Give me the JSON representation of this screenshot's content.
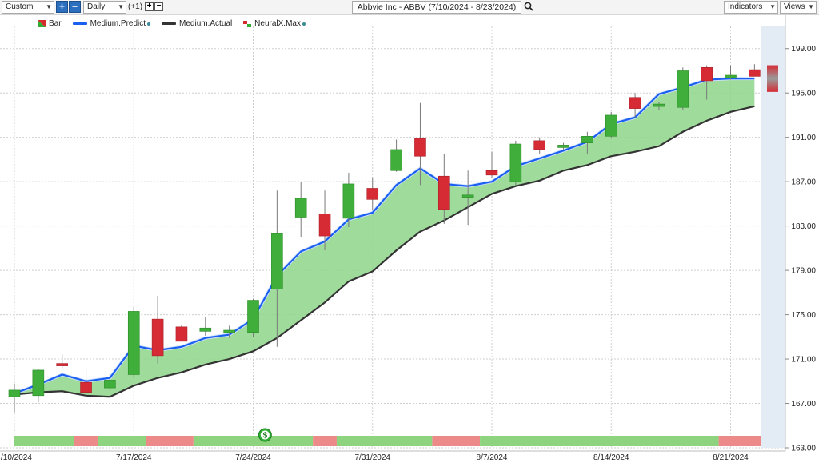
{
  "toolbar": {
    "period_select": "Custom",
    "interval_select": "Daily",
    "offset_text": "(+1)",
    "title": "Abbvie Inc - ABBV (7/10/2024 - 8/23/2024)",
    "indicators_label": "Indicators",
    "views_label": "Views"
  },
  "legend": [
    {
      "label": "Bar",
      "icon": "bar-icon"
    },
    {
      "label": "Medium.Predict",
      "color": "#1a5ff0",
      "icon": "line-icon"
    },
    {
      "label": "Medium.Actual",
      "color": "#333333",
      "icon": "line-icon"
    },
    {
      "label": "NeuralX.Max",
      "icon": "neural-icon"
    }
  ],
  "colors": {
    "up": "#3fae3a",
    "down": "#d62b35",
    "predict": "#1a5ff0",
    "actual": "#333333",
    "fill": "#8ed68a",
    "neural_up": "#8ed47f",
    "neural_down": "#ec8a8a",
    "forecast_band": "#e3ebf5"
  },
  "chart_data": {
    "type": "candlestick",
    "ylim": [
      163,
      201
    ],
    "yticks": [
      "163.00",
      "167.00",
      "171.00",
      "175.00",
      "179.00",
      "183.00",
      "187.00",
      "191.00",
      "195.00",
      "199.00"
    ],
    "xticks": [
      {
        "index": 0,
        "label": "/10/2024"
      },
      {
        "index": 5,
        "label": "7/17/2024"
      },
      {
        "index": 10,
        "label": "7/24/2024"
      },
      {
        "index": 15,
        "label": "7/31/2024"
      },
      {
        "index": 20,
        "label": "8/7/2024"
      },
      {
        "index": 25,
        "label": "8/14/2024"
      },
      {
        "index": 30,
        "label": "8/21/2024"
      }
    ],
    "candles": [
      {
        "o": 167.6,
        "h": 168.8,
        "l": 166.2,
        "c": 168.2
      },
      {
        "o": 167.7,
        "h": 170.1,
        "l": 167.1,
        "c": 170.0
      },
      {
        "o": 170.6,
        "h": 171.4,
        "l": 170.2,
        "c": 170.4
      },
      {
        "o": 168.9,
        "h": 170.2,
        "l": 167.6,
        "c": 168.0
      },
      {
        "o": 168.4,
        "h": 169.7,
        "l": 168.1,
        "c": 169.1
      },
      {
        "o": 169.6,
        "h": 175.7,
        "l": 169.3,
        "c": 175.3
      },
      {
        "o": 174.6,
        "h": 176.7,
        "l": 170.6,
        "c": 171.3
      },
      {
        "o": 173.9,
        "h": 174.1,
        "l": 172.7,
        "c": 172.6
      },
      {
        "o": 173.5,
        "h": 174.8,
        "l": 173.1,
        "c": 173.8
      },
      {
        "o": 173.4,
        "h": 174.0,
        "l": 172.9,
        "c": 173.6
      },
      {
        "o": 173.4,
        "h": 176.4,
        "l": 173.0,
        "c": 176.3
      },
      {
        "o": 177.3,
        "h": 186.2,
        "l": 172.1,
        "c": 182.3
      },
      {
        "o": 183.8,
        "h": 187.0,
        "l": 182.0,
        "c": 185.5
      },
      {
        "o": 184.1,
        "h": 186.2,
        "l": 180.8,
        "c": 182.1
      },
      {
        "o": 183.7,
        "h": 187.8,
        "l": 182.9,
        "c": 186.8
      },
      {
        "o": 186.4,
        "h": 187.4,
        "l": 184.4,
        "c": 185.4
      },
      {
        "o": 188.0,
        "h": 190.8,
        "l": 187.9,
        "c": 189.9
      },
      {
        "o": 190.9,
        "h": 194.1,
        "l": 186.7,
        "c": 189.3
      },
      {
        "o": 187.5,
        "h": 189.5,
        "l": 183.2,
        "c": 184.5
      },
      {
        "o": 185.6,
        "h": 188.0,
        "l": 183.1,
        "c": 185.8
      },
      {
        "o": 188.0,
        "h": 189.7,
        "l": 187.3,
        "c": 187.6
      },
      {
        "o": 187.0,
        "h": 190.7,
        "l": 186.7,
        "c": 190.4
      },
      {
        "o": 190.7,
        "h": 191.0,
        "l": 189.5,
        "c": 189.9
      },
      {
        "o": 190.3,
        "h": 190.5,
        "l": 189.9,
        "c": 190.3
      },
      {
        "o": 190.5,
        "h": 191.5,
        "l": 189.5,
        "c": 191.1
      },
      {
        "o": 191.1,
        "h": 193.3,
        "l": 190.9,
        "c": 193.0
      },
      {
        "o": 194.6,
        "h": 195.0,
        "l": 192.8,
        "c": 193.6
      },
      {
        "o": 194.0,
        "h": 194.2,
        "l": 193.5,
        "c": 194.0
      },
      {
        "o": 193.7,
        "h": 197.3,
        "l": 193.5,
        "c": 197.0
      },
      {
        "o": 197.3,
        "h": 197.5,
        "l": 194.4,
        "c": 196.1
      },
      {
        "o": 196.5,
        "h": 197.5,
        "l": 196.2,
        "c": 196.6
      },
      {
        "o": 197.1,
        "h": 197.6,
        "l": 196.6,
        "c": 196.5
      }
    ],
    "forecast_candle": {
      "o": 197.5,
      "h": 197.5,
      "l": 195.1,
      "c": 195.1
    },
    "medium_predict": [
      167.9,
      168.7,
      169.6,
      169.0,
      169.3,
      172.2,
      171.8,
      172.1,
      172.9,
      173.2,
      174.6,
      178.5,
      180.7,
      181.6,
      183.6,
      184.2,
      186.7,
      188.2,
      186.8,
      186.6,
      187.0,
      188.4,
      189.1,
      189.8,
      190.6,
      192.2,
      192.8,
      194.9,
      195.5,
      196.2,
      196.3,
      196.3
    ],
    "medium_actual": [
      167.8,
      168.0,
      168.1,
      167.7,
      167.6,
      168.6,
      169.3,
      169.8,
      170.5,
      171.0,
      171.7,
      172.9,
      174.5,
      176.1,
      178.0,
      178.9,
      180.8,
      182.5,
      183.5,
      184.7,
      185.9,
      186.6,
      187.1,
      188.0,
      188.5,
      189.3,
      189.7,
      190.2,
      191.5,
      192.5,
      193.3,
      193.8
    ],
    "neuralx_segments": [
      {
        "from": 0,
        "to": 2.5,
        "signal": "up"
      },
      {
        "from": 2.5,
        "to": 3.5,
        "signal": "down"
      },
      {
        "from": 3.5,
        "to": 5.5,
        "signal": "up"
      },
      {
        "from": 5.5,
        "to": 7.5,
        "signal": "down"
      },
      {
        "from": 7.5,
        "to": 12.5,
        "signal": "up"
      },
      {
        "from": 12.5,
        "to": 13.5,
        "signal": "down"
      },
      {
        "from": 13.5,
        "to": 17.5,
        "signal": "up"
      },
      {
        "from": 17.5,
        "to": 19.5,
        "signal": "down"
      },
      {
        "from": 19.5,
        "to": 29.5,
        "signal": "up"
      },
      {
        "from": 29.5,
        "to": 31.5,
        "signal": "down"
      }
    ],
    "dividend_marker": {
      "index": 11,
      "label": "$"
    }
  }
}
